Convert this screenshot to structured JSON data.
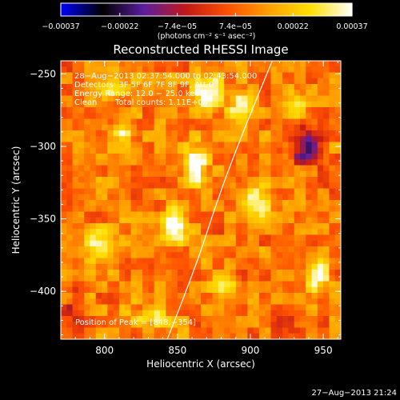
{
  "chart_data": {
    "type": "heatmap",
    "title": "Reconstructed RHESSI Image",
    "xlabel": "Heliocentric X (arcsec)",
    "ylabel": "Heliocentric Y (arcsec)",
    "xlim": [
      770,
      962
    ],
    "ylim": [
      -433,
      -241
    ],
    "x_ticks": [
      800,
      850,
      900,
      950
    ],
    "y_ticks": [
      -250,
      -300,
      -350,
      -400
    ],
    "x_tick_labels": [
      "800",
      "850",
      "900",
      "950"
    ],
    "y_tick_labels": [
      "−250",
      "−300",
      "−350",
      "−400"
    ],
    "colorbar": {
      "range": [
        -0.00037,
        0.00037
      ],
      "tick_values": [
        -0.00037,
        -0.00022,
        -7.4e-05,
        7.4e-05,
        0.00022,
        0.00037
      ],
      "tick_labels": [
        "−0.00037",
        "−0.00022",
        "−7.4e−05",
        "7.4e−05",
        "0.00022",
        "0.00037"
      ],
      "unit_label": "(photons cm⁻² s⁻¹ asec⁻²)",
      "colors": [
        "#0000ff",
        "#000000",
        "#5c1ea0",
        "#c01818",
        "#ff5000",
        "#ff9f00",
        "#ffe000",
        "#ffffff"
      ]
    },
    "annotations": {
      "time": "28−Aug−2013 02:37:54.000 to 02:43:54.000",
      "detectors": "Detectors: 3F 5F 6F 7F 8F 9F, Att 0",
      "energy": "Energy Range: 12.0 − 25.0 keV",
      "clean_method": "Clean",
      "counts": "Total counts: 1.11E+04",
      "peak": "Position of Peak = [848,−354]"
    },
    "peak": {
      "x": 848,
      "y": -354
    },
    "sources": [
      {
        "x": 848,
        "y": -354,
        "amp": 0.00037,
        "sx": 6,
        "sy": 8
      },
      {
        "x": 862,
        "y": -313,
        "amp": 0.00031,
        "sx": 6,
        "sy": 9
      },
      {
        "x": 870,
        "y": -262,
        "amp": 0.00028,
        "sx": 7,
        "sy": 8
      },
      {
        "x": 893,
        "y": -270,
        "amp": 0.00024,
        "sx": 6,
        "sy": 7
      },
      {
        "x": 812,
        "y": -288,
        "amp": 0.00022,
        "sx": 6,
        "sy": 5
      },
      {
        "x": 798,
        "y": -370,
        "amp": 0.00024,
        "sx": 8,
        "sy": 8
      },
      {
        "x": 805,
        "y": -262,
        "amp": 0.00018,
        "sx": 6,
        "sy": 5
      },
      {
        "x": 905,
        "y": -340,
        "amp": 0.0002,
        "sx": 8,
        "sy": 9
      },
      {
        "x": 947,
        "y": -390,
        "amp": 0.00024,
        "sx": 5,
        "sy": 7
      },
      {
        "x": 830,
        "y": -418,
        "amp": 0.00018,
        "sx": 9,
        "sy": 5
      },
      {
        "x": 930,
        "y": -275,
        "amp": 0.00016,
        "sx": 6,
        "sy": 6
      },
      {
        "x": 882,
        "y": -395,
        "amp": 0.00016,
        "sx": 6,
        "sy": 7
      },
      {
        "x": 938,
        "y": -300,
        "amp": -0.0003,
        "sx": 7,
        "sy": 8
      },
      {
        "x": 780,
        "y": -415,
        "amp": -0.00012,
        "sx": 6,
        "sy": 8
      },
      {
        "x": 925,
        "y": -420,
        "amp": -0.0001,
        "sx": 8,
        "sy": 6
      }
    ],
    "limb_arc": [
      [
        843,
        -433
      ],
      [
        862,
        -385
      ],
      [
        878,
        -335
      ],
      [
        895,
        -290
      ],
      [
        915,
        -241
      ]
    ]
  },
  "footer": {
    "timestamp": "27−Aug−2013 21:24"
  }
}
